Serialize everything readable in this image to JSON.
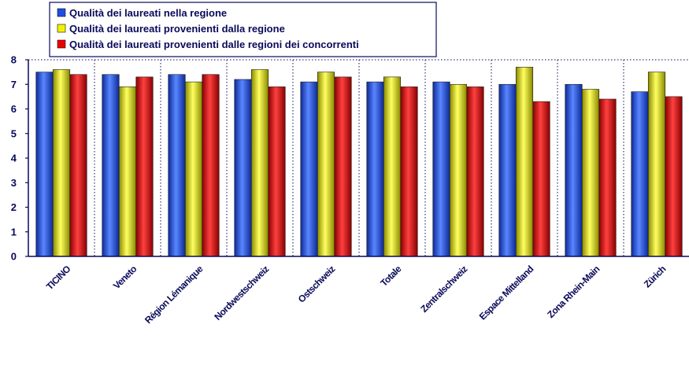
{
  "chart_data": {
    "type": "bar",
    "categories": [
      "TICINO",
      "Veneto",
      "Région Lémanique",
      "Nordwestschweiz",
      "Ostschweiz",
      "Totale",
      "Zentralschweiz",
      "Espace Mittelland",
      "Zona Rhein-Main",
      "Zürich"
    ],
    "series": [
      {
        "name": "Qualità dei laureati nella regione",
        "color": "#1f4fe0",
        "values": [
          7.5,
          7.4,
          7.4,
          7.2,
          7.1,
          7.1,
          7.1,
          7.0,
          7.0,
          6.7
        ]
      },
      {
        "name": "Qualità dei laureati provenienti dalla regione",
        "color": "#f2f200",
        "values": [
          7.6,
          6.9,
          7.1,
          7.6,
          7.5,
          7.3,
          7.0,
          7.7,
          6.8,
          7.5
        ]
      },
      {
        "name": "Qualità dei laureati provenienti dalle regioni dei concorrenti",
        "color": "#ee0000",
        "values": [
          7.4,
          7.3,
          7.4,
          6.9,
          7.3,
          6.9,
          6.9,
          6.3,
          6.4,
          6.5
        ]
      }
    ],
    "yticks": [
      0,
      1,
      2,
      3,
      4,
      5,
      6,
      7,
      8
    ],
    "ylim": [
      0,
      8
    ],
    "legend_position": "top-left",
    "grid": "dotted vertical separators between categories and dotted horizontal gridline at 8"
  }
}
